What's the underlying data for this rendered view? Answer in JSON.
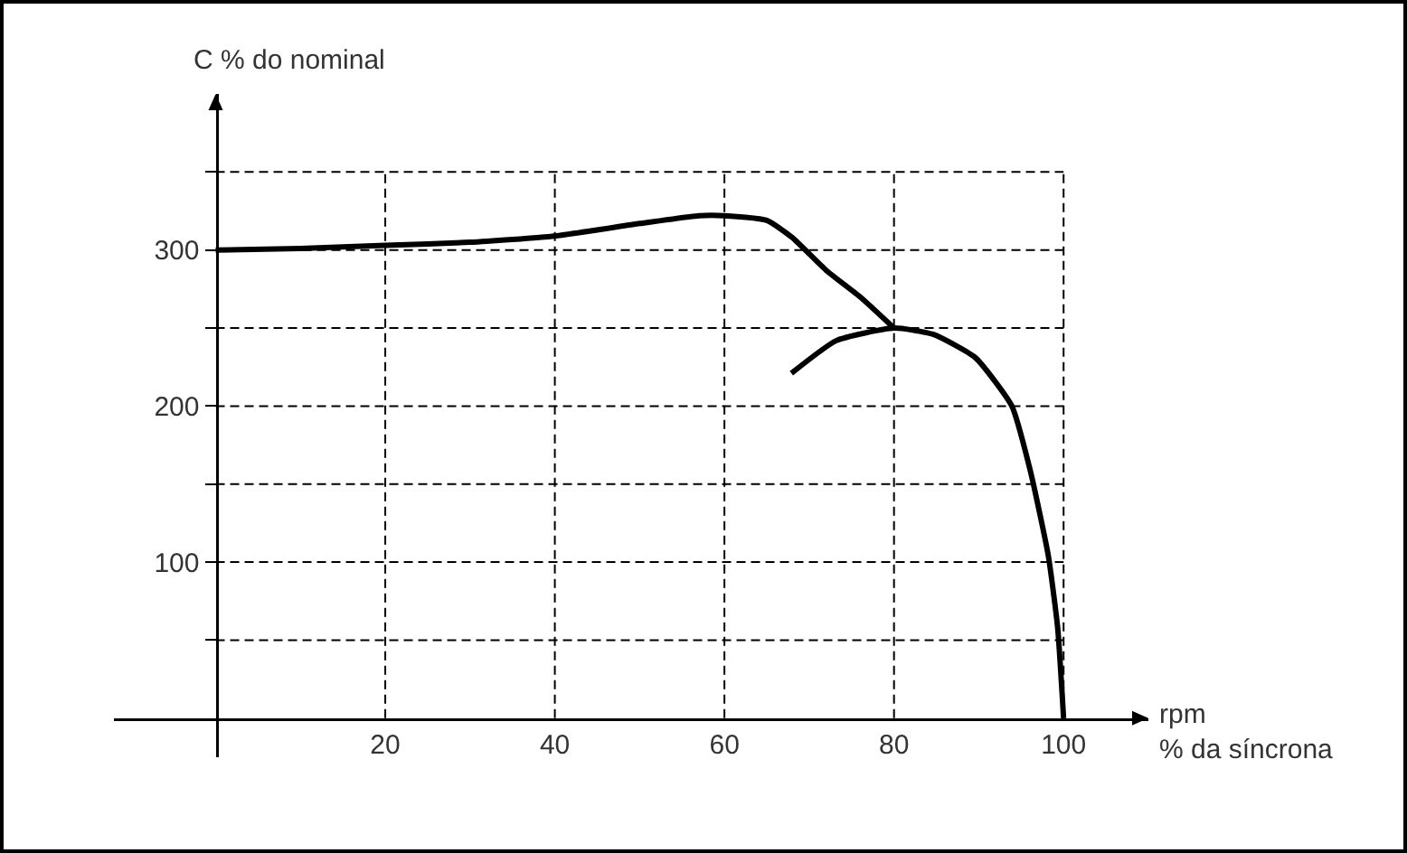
{
  "chart_data": {
    "type": "line",
    "ylabel": "C % do nominal",
    "xlabel": "rpm\n% da síncrona",
    "xlim": [
      -12,
      110
    ],
    "ylim": [
      -25,
      400
    ],
    "xticks": [
      20,
      40,
      60,
      80,
      100
    ],
    "yticks": [
      {
        "value": 50,
        "label": null
      },
      100,
      {
        "value": 150,
        "label": null
      },
      200,
      {
        "value": 250,
        "label": null
      },
      300,
      {
        "value": 350,
        "label": null
      }
    ],
    "grid": true,
    "marker": "none",
    "line_style": "solid",
    "series": [
      {
        "color": "#000000",
        "x": [
          0,
          10,
          20,
          30,
          40,
          50,
          57,
          60,
          65,
          68,
          72,
          76,
          80
        ],
        "values": [
          300,
          301,
          303,
          305,
          309,
          317,
          322,
          322,
          319,
          308,
          287,
          270,
          250
        ]
      },
      {
        "color": "#000000",
        "x": [
          67.9,
          73.2,
          80,
          84.6,
          89.6,
          93.9,
          96.1,
          98.2,
          99.3,
          100
        ],
        "values": [
          221,
          242,
          250,
          246,
          231,
          200,
          158,
          104,
          58,
          0
        ]
      }
    ]
  }
}
